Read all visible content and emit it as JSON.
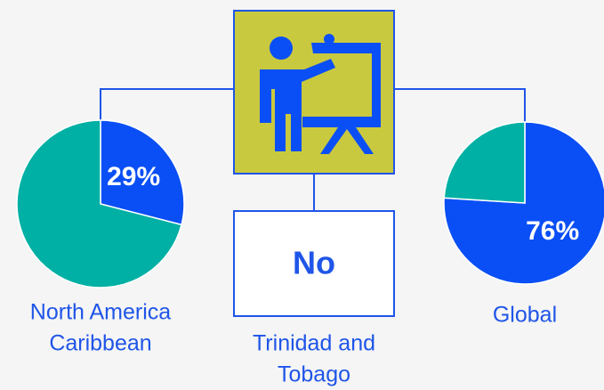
{
  "chart_data": [
    {
      "type": "pie",
      "label": [
        "North America",
        "Caribbean"
      ],
      "values": [
        29,
        71
      ],
      "value_labels": [
        "29%",
        null
      ],
      "colors": [
        "#0a4ff5",
        "#00b0a4"
      ]
    },
    {
      "type": "pie",
      "label": [
        "Global"
      ],
      "values": [
        76,
        24
      ],
      "value_labels": [
        "76%",
        null
      ],
      "colors": [
        "#0a4ff5",
        "#00b0a4"
      ]
    }
  ],
  "center_box": {
    "text": "No",
    "label": [
      "Trinidad and",
      "Tobago"
    ]
  }
}
